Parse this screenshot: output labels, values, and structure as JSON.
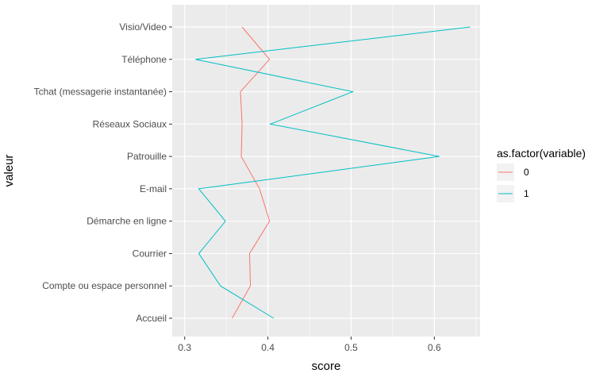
{
  "chart_data": {
    "type": "line",
    "title": "",
    "xlabel": "score",
    "ylabel": "valeur",
    "xlim": [
      0.285,
      0.655
    ],
    "x_ticks": [
      0.3,
      0.4,
      0.5,
      0.6
    ],
    "x_tick_labels": [
      "0.3",
      "0.4",
      "0.5",
      "0.6"
    ],
    "categories": [
      "Accueil",
      "Compte ou espace personnel",
      "Courrier",
      "Démarche en ligne",
      "E-mail",
      "Patrouille",
      "Réseaux Sociaux",
      "Tchat (messagerie instantanée)",
      "Téléphone",
      "Visio/Video"
    ],
    "grid": true,
    "legend": {
      "title": "as.factor(variable)",
      "position": "right"
    },
    "series": [
      {
        "name": "0",
        "color": "#F8766D",
        "values": [
          0.357,
          0.379,
          0.378,
          0.402,
          0.39,
          0.368,
          0.369,
          0.367,
          0.402,
          0.369
        ]
      },
      {
        "name": "1",
        "color": "#00BFC4",
        "values": [
          0.407,
          0.343,
          0.317,
          0.349,
          0.317,
          0.606,
          0.403,
          0.502,
          0.313,
          0.643
        ]
      }
    ]
  }
}
